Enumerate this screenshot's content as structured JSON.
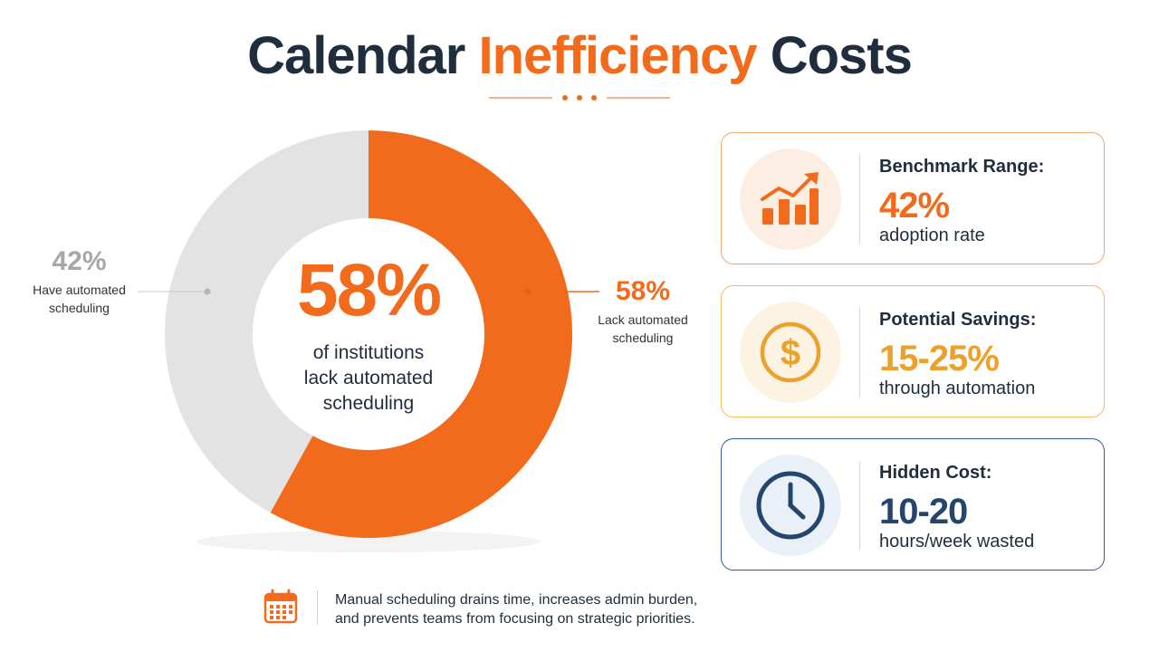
{
  "title": {
    "part1": "Calendar",
    "accent": "Inefficiency",
    "part2": "Costs"
  },
  "chart_data": {
    "type": "pie",
    "variant": "donut",
    "slices": [
      {
        "label": "Lack automated scheduling",
        "value": 58,
        "color": "#f26b1d"
      },
      {
        "label": "Have automated scheduling",
        "value": 42,
        "color": "#e3e3e3"
      }
    ],
    "center": {
      "value": "58%",
      "caption": [
        "of institutions",
        "lack automated",
        "scheduling"
      ]
    },
    "callouts": [
      {
        "pct": "42%",
        "caption": [
          "Have automated",
          "scheduling"
        ]
      },
      {
        "pct": "58%",
        "caption": [
          "Lack automated",
          "scheduling"
        ]
      }
    ]
  },
  "cards": [
    {
      "label": "Benchmark Range:",
      "value": "42%",
      "sub": "adoption rate",
      "icon": "growth-chart-icon",
      "color": "#f26b1d"
    },
    {
      "label": "Potential Savings:",
      "value": "15-25%",
      "sub": "through automation",
      "icon": "dollar-icon",
      "color": "#eba12b"
    },
    {
      "label": "Hidden Cost:",
      "value": "10-20",
      "sub": "hours/week wasted",
      "icon": "clock-icon",
      "color": "#24456d"
    }
  ],
  "footer": {
    "icon": "calendar-icon",
    "line1": "Manual scheduling drains time, increases admin burden,",
    "line2": "and prevents teams from focusing on strategic priorities."
  }
}
